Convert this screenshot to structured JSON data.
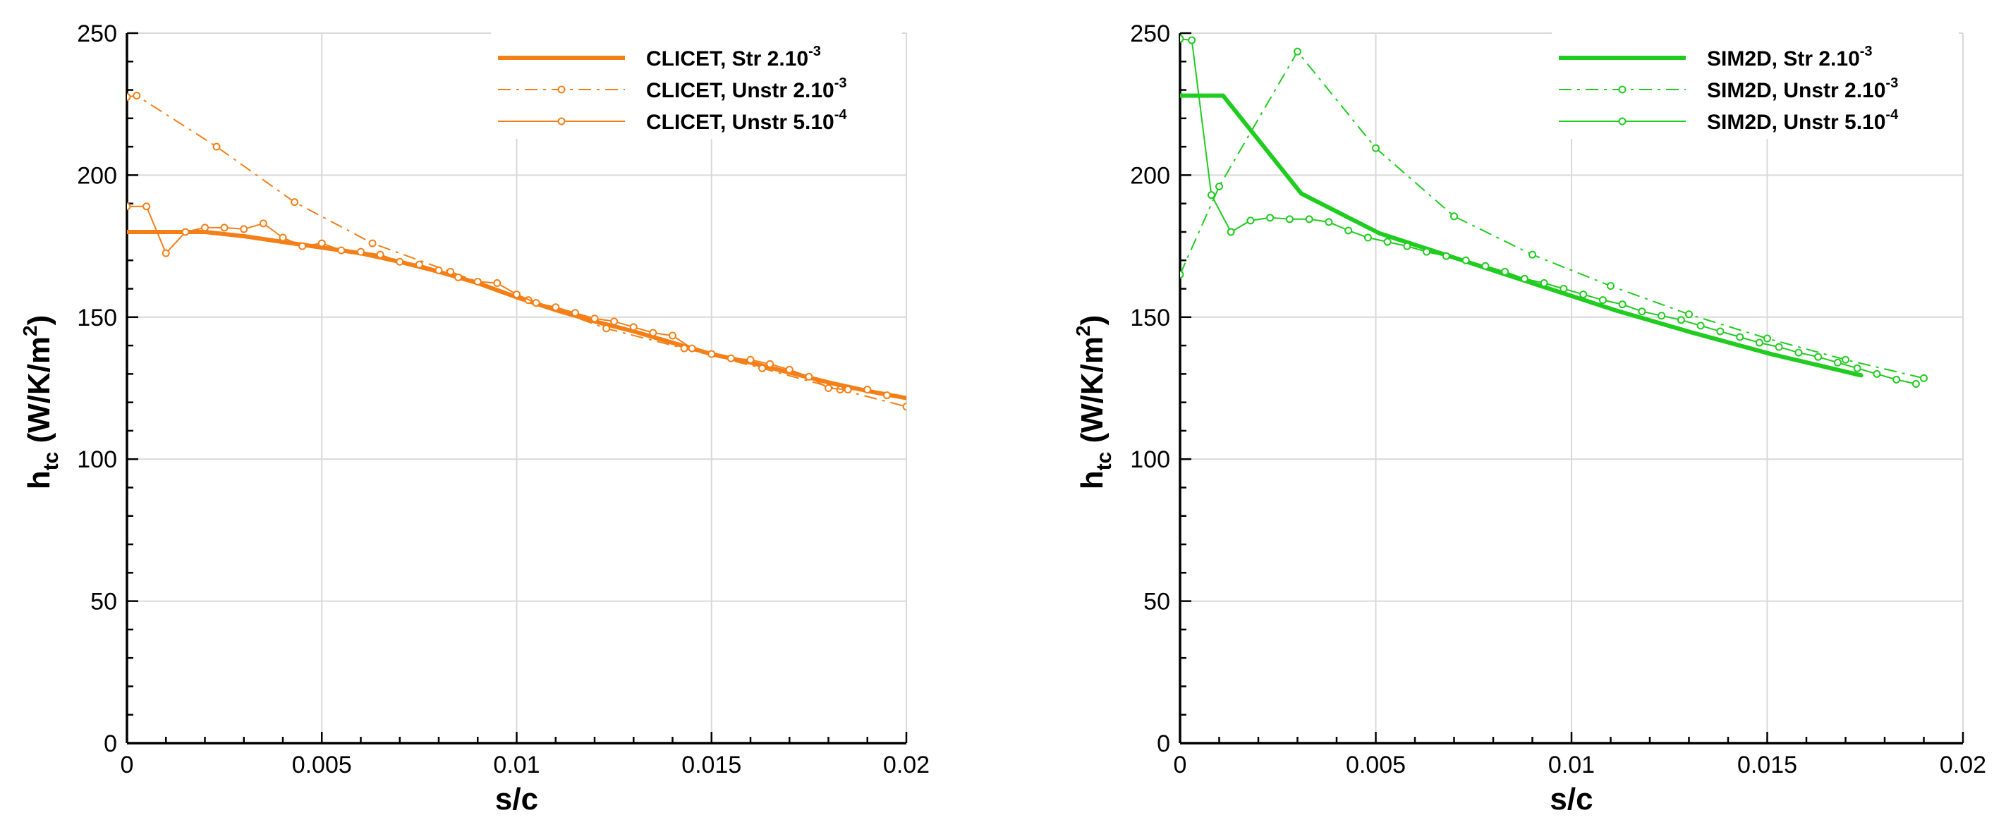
{
  "figure": {
    "colors": {
      "orange": "#F57F17",
      "green": "#1FCC1F",
      "grid": "#d9d9d9",
      "axis": "#000000"
    }
  },
  "chart_data": [
    {
      "type": "line",
      "xlabel": "s/c",
      "ylabel": {
        "main": "h",
        "sub": "tc",
        "units_pre": "(W/K/m",
        "units_sup": "2",
        "units_post": ")"
      },
      "xlim": [
        0,
        0.02
      ],
      "ylim": [
        0,
        250
      ],
      "xticks": [
        "0",
        "0.005",
        "0.01",
        "0.015",
        "0.02"
      ],
      "yticks": [
        "0",
        "50",
        "100",
        "150",
        "200",
        "250"
      ],
      "grid": true,
      "legend_position": "top-right",
      "series": [
        {
          "name": "CLICET, Str  2.10",
          "name_sup": "-3",
          "color": "#F57F17",
          "style": "solid-thick",
          "x": [
            0,
            0.001,
            0.002,
            0.003,
            0.004,
            0.005,
            0.006,
            0.007,
            0.008,
            0.009,
            0.01,
            0.011,
            0.012,
            0.013,
            0.014,
            0.015,
            0.016,
            0.017,
            0.018,
            0.019,
            0.02
          ],
          "y": [
            180,
            180,
            180,
            178.5,
            176.5,
            174.5,
            172.5,
            169.5,
            166,
            162,
            157,
            152.5,
            148.5,
            145,
            141,
            137,
            134,
            130.5,
            127,
            124,
            121.5
          ]
        },
        {
          "name": "CLICET, Unstr 2.10",
          "name_sup": "-3",
          "color": "#F57F17",
          "style": "dashdot",
          "x": [
            0,
            0.00025,
            0.0023,
            0.0043,
            0.0063,
            0.0083,
            0.0103,
            0.0123,
            0.0143,
            0.0163,
            0.0183,
            0.02
          ],
          "y": [
            227.5,
            228,
            210,
            190.5,
            176,
            166,
            156,
            146,
            139,
            132,
            124.5,
            118.5
          ]
        },
        {
          "name": "CLICET, Unstr 5.10",
          "name_sup": "-4",
          "color": "#F57F17",
          "style": "thin-circles",
          "x": [
            0,
            0.0005,
            0.001,
            0.0015,
            0.002,
            0.0025,
            0.003,
            0.0035,
            0.004,
            0.0045,
            0.005,
            0.0055,
            0.006,
            0.0065,
            0.007,
            0.0075,
            0.008,
            0.0085,
            0.009,
            0.0095,
            0.01,
            0.0105,
            0.011,
            0.0115,
            0.012,
            0.0125,
            0.013,
            0.0135,
            0.014,
            0.0145,
            0.015,
            0.0155,
            0.016,
            0.0165,
            0.017,
            0.0175,
            0.018,
            0.0185,
            0.019,
            0.0195
          ],
          "y": [
            189,
            189,
            172.5,
            180,
            181.5,
            181.5,
            181,
            183,
            178,
            175,
            176,
            173.5,
            173,
            172,
            169.5,
            168.5,
            166.5,
            164,
            162.5,
            162,
            158,
            155,
            153.5,
            151.5,
            149.5,
            148.5,
            146.5,
            144.5,
            143.5,
            139,
            137,
            135.5,
            135,
            133.5,
            131.5,
            129,
            125,
            124.5,
            124.5,
            122.5
          ]
        }
      ]
    },
    {
      "type": "line",
      "xlabel": "s/c",
      "ylabel": {
        "main": "h",
        "sub": "tc",
        "units_pre": "(W/K/m",
        "units_sup": "2",
        "units_post": ")"
      },
      "xlim": [
        0,
        0.02
      ],
      "ylim": [
        0,
        250
      ],
      "xticks": [
        "0",
        "0.005",
        "0.01",
        "0.015",
        "0.02"
      ],
      "yticks": [
        "0",
        "50",
        "100",
        "150",
        "200",
        "250"
      ],
      "grid": true,
      "legend_position": "top-right",
      "series": [
        {
          "name": "SIM2D, Str  2.10",
          "name_sup": "-3",
          "color": "#1FCC1F",
          "style": "solid-thick",
          "x": [
            0,
            0.0011,
            0.0031,
            0.0051,
            0.0071,
            0.0091,
            0.0111,
            0.0131,
            0.0151,
            0.0174
          ],
          "y": [
            228,
            228,
            193.5,
            179.5,
            170.5,
            161.5,
            152.5,
            144.5,
            137,
            129.5
          ]
        },
        {
          "name": "SIM2D, Unstr  2.10",
          "name_sup": "-3",
          "color": "#1FCC1F",
          "style": "dashdot",
          "x": [
            0,
            0.001,
            0.003,
            0.005,
            0.007,
            0.009,
            0.011,
            0.013,
            0.015,
            0.017,
            0.019
          ],
          "y": [
            165,
            196,
            243.5,
            209.5,
            185.5,
            172,
            161,
            151,
            142.5,
            135,
            128.5
          ]
        },
        {
          "name": "SIM2D, Unstr  5.10",
          "name_sup": "-4",
          "color": "#1FCC1F",
          "style": "thin-circles",
          "x": [
            0,
            0.0003,
            0.0008,
            0.0013,
            0.0018,
            0.0023,
            0.0028,
            0.0033,
            0.0038,
            0.0043,
            0.0048,
            0.0053,
            0.0058,
            0.0063,
            0.0068,
            0.0073,
            0.0078,
            0.0083,
            0.0088,
            0.0093,
            0.0098,
            0.0103,
            0.0108,
            0.0113,
            0.0118,
            0.0123,
            0.0128,
            0.0133,
            0.0138,
            0.0143,
            0.0148,
            0.0153,
            0.0158,
            0.0163,
            0.0168,
            0.0173,
            0.0178,
            0.0183,
            0.0188
          ],
          "y": [
            248,
            247.5,
            193,
            180,
            184,
            185,
            184.5,
            184.5,
            183.5,
            180.5,
            178,
            176.5,
            175,
            173,
            171.5,
            170,
            168,
            166,
            163.5,
            162,
            160,
            158,
            156,
            154.5,
            152,
            150.5,
            149,
            147,
            145,
            143,
            141,
            139.5,
            137.5,
            136,
            134,
            132,
            130,
            128,
            126.5
          ]
        }
      ]
    }
  ]
}
